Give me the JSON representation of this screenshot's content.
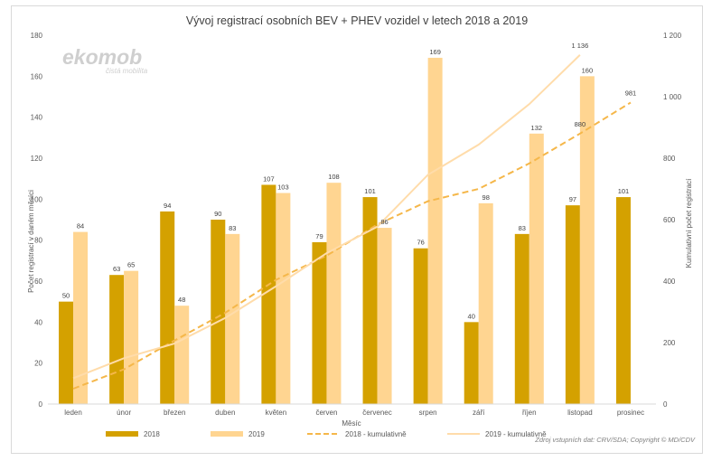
{
  "logo": {
    "text": "ekomob",
    "subtitle": "čistá mobilita"
  },
  "source": "Zdroj vstupních dat: CRV/SDA; Copyright © MD/CDV",
  "chart_data": {
    "type": "bar",
    "title": "Vývoj registrací osobních BEV + PHEV vozidel v letech 2018 a 2019",
    "xlabel": "Měsíc",
    "ylabel": "Počet registrací v daném měsíci",
    "y2label": "Kumulativní počet registrací",
    "ylim": [
      0,
      180
    ],
    "y2lim": [
      0,
      1200
    ],
    "yticks": [
      "0",
      "20",
      "40",
      "60",
      "80",
      "100",
      "120",
      "140",
      "160",
      "180"
    ],
    "y2ticks": [
      "0",
      "200",
      "400",
      "600",
      "800",
      "1 000",
      "1 200"
    ],
    "categories": [
      "leden",
      "únor",
      "březen",
      "duben",
      "květen",
      "červen",
      "červenec",
      "srpen",
      "září",
      "říjen",
      "listopad",
      "prosinec"
    ],
    "grid": false,
    "legend_position": "bottom",
    "series": [
      {
        "name": "2018",
        "type": "bar",
        "color": "#d4a100",
        "values": [
          50,
          63,
          94,
          90,
          107,
          79,
          101,
          76,
          40,
          83,
          97,
          101
        ],
        "labels": [
          "50",
          "63",
          "94",
          "90",
          "107",
          "79",
          "101",
          "76",
          "40",
          "83",
          "97",
          "101"
        ]
      },
      {
        "name": "2019",
        "type": "bar",
        "color": "#ffd591",
        "values": [
          84,
          65,
          48,
          83,
          103,
          108,
          86,
          169,
          98,
          132,
          160,
          null
        ],
        "labels": [
          "84",
          "65",
          "48",
          "83",
          "103",
          "108",
          "86",
          "169",
          "98",
          "132",
          "160",
          ""
        ]
      },
      {
        "name": "2018 - kumulativně",
        "type": "line",
        "axis": "right",
        "style": "dashed",
        "color": "#f5b74a",
        "values": [
          50,
          113,
          207,
          297,
          404,
          483,
          584,
          660,
          700,
          783,
          880,
          981
        ],
        "labels": [
          "",
          "",
          "",
          "",
          "",
          "",
          "",
          "",
          "",
          "",
          "880",
          "981"
        ]
      },
      {
        "name": "2019 - kumulativně",
        "type": "line",
        "axis": "right",
        "style": "solid",
        "color": "#ffdcaa",
        "values": [
          84,
          149,
          197,
          280,
          383,
          491,
          577,
          746,
          844,
          976,
          1136,
          null
        ],
        "labels": [
          "",
          "",
          "",
          "",
          "",
          "",
          "",
          "",
          "",
          "",
          "1 136",
          ""
        ]
      }
    ]
  }
}
